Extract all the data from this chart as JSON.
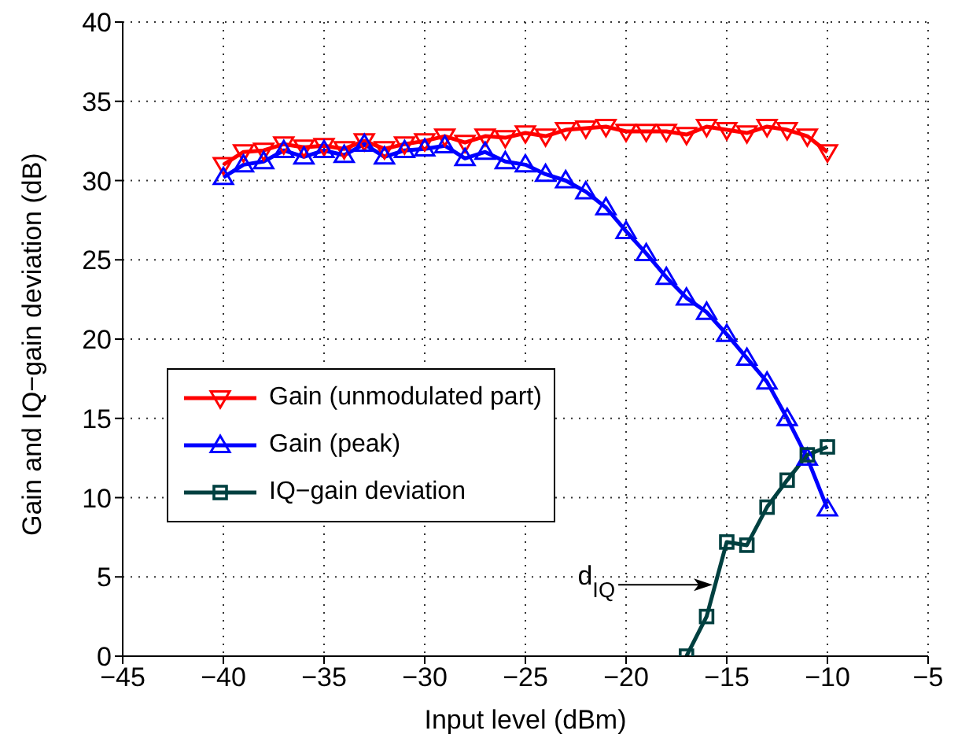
{
  "chart_data": {
    "type": "line",
    "xlabel": "Input level (dBm)",
    "ylabel": "Gain and IQ−gain deviation (dB)",
    "xlim": [
      -45,
      -5
    ],
    "xticks": [
      -45,
      -40,
      -35,
      -30,
      -25,
      -20,
      -15,
      -10,
      -5
    ],
    "ylim": [
      0,
      40
    ],
    "yticks": [
      0,
      5,
      10,
      15,
      20,
      25,
      30,
      35,
      40
    ],
    "grid": true,
    "legend": "left",
    "line_style": "solid",
    "series": [
      {
        "name": "Gain (unmodulated part)",
        "color": "#ff0000",
        "marker": "triangle-down",
        "x": [
          -40,
          -39,
          -38,
          -37,
          -36,
          -35,
          -34,
          -33,
          -32,
          -31,
          -30,
          -29,
          -28,
          -27,
          -26,
          -25,
          -24,
          -23,
          -22,
          -21,
          -20,
          -19,
          -18,
          -17,
          -16,
          -15,
          -14,
          -13,
          -12,
          -11,
          -10
        ],
        "values": [
          31.0,
          31.8,
          31.9,
          32.3,
          32.1,
          32.2,
          32.0,
          32.5,
          32.0,
          32.3,
          32.5,
          32.8,
          32.4,
          32.8,
          32.7,
          33.0,
          32.8,
          33.2,
          33.3,
          33.4,
          33.1,
          33.1,
          33.1,
          32.9,
          33.4,
          33.2,
          33.0,
          33.4,
          33.2,
          32.8,
          31.8
        ]
      },
      {
        "name": "Gain (peak)",
        "color": "#0000ff",
        "marker": "triangle",
        "x": [
          -40,
          -39,
          -38,
          -37,
          -36,
          -35,
          -34,
          -33,
          -32,
          -31,
          -30,
          -29,
          -28,
          -27,
          -26,
          -25,
          -24,
          -23,
          -22,
          -21,
          -20,
          -19,
          -18,
          -17,
          -16,
          -15,
          -14,
          -13,
          -12,
          -11,
          -10
        ],
        "values": [
          30.2,
          31.0,
          31.2,
          31.9,
          31.5,
          31.9,
          31.6,
          32.3,
          31.5,
          31.9,
          32.0,
          32.2,
          31.4,
          31.8,
          31.2,
          31.0,
          30.4,
          30.0,
          29.3,
          28.3,
          26.8,
          25.4,
          23.9,
          22.6,
          21.7,
          20.3,
          18.8,
          17.3,
          15.0,
          12.5,
          9.3
        ]
      },
      {
        "name": "IQ−gain deviation",
        "color": "#004040",
        "marker": "square",
        "x": [
          -17,
          -16,
          -15,
          -14,
          -13,
          -12,
          -11,
          -10
        ],
        "values": [
          0.0,
          2.5,
          7.2,
          7.0,
          9.4,
          11.1,
          12.7,
          13.2
        ]
      }
    ],
    "annotations": [
      {
        "text": "d$_{IQ}$",
        "x": -15.7,
        "y": 4.5
      }
    ]
  }
}
